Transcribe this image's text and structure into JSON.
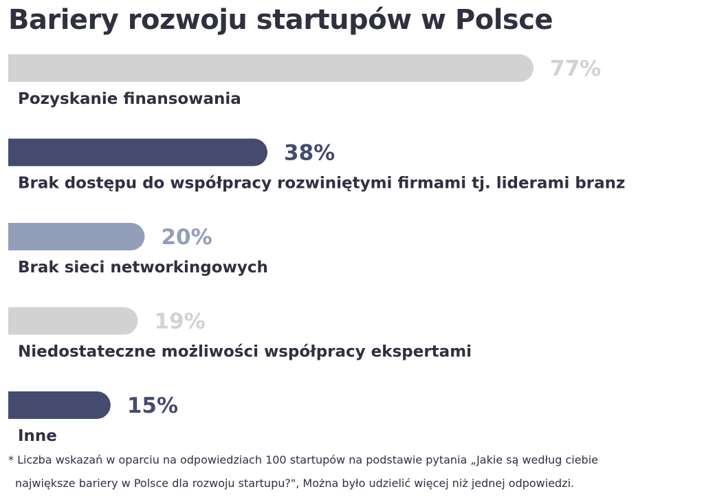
{
  "chart_data": {
    "type": "bar",
    "orientation": "horizontal",
    "title": "Bariery rozwoju startupów w Polsce",
    "categories": [
      "Pozyskanie finansowania",
      "Brak dostępu do współpracy rozwiniętymi firmami tj. liderami branz",
      "Brak sieci networkingowych",
      "Niedostateczne możliwości współpracy ekspertami",
      "Inne"
    ],
    "values": [
      77,
      38,
      20,
      19,
      15
    ],
    "value_labels": [
      "77%",
      "38%",
      "20%",
      "19%",
      "15%"
    ],
    "colors": [
      "#d2d2d2",
      "#444b6e",
      "#939eba",
      "#d2d2d2",
      "#444b6e"
    ],
    "xlim": [
      0,
      77
    ],
    "grid": false,
    "legend": "none"
  },
  "footnote": {
    "line1": "* Liczba wskazań w oparciu na odpowiedziach 100 startupów na podstawie pytania „Jakie są według ciebie",
    "line2": "największe bariery w Polsce dla rozwoju startupu?\", Można było udzielić więcej niż jednej odpowiedzi."
  }
}
